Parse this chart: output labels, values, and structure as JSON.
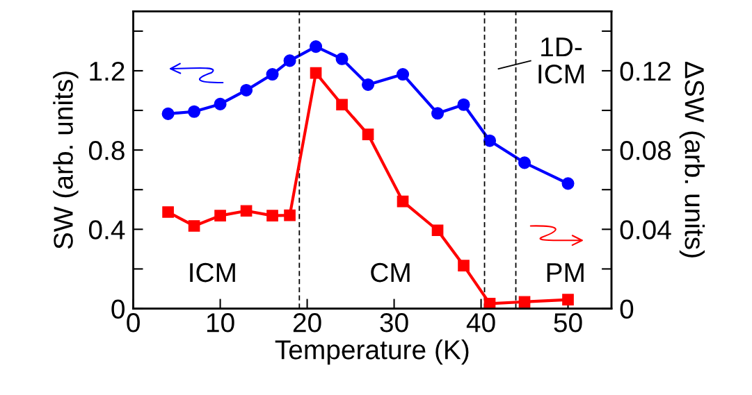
{
  "chart_data": {
    "type": "line",
    "xlabel": "Temperature (K)",
    "ylabel": "SW (arb. units)",
    "y2label": "ΔSW (arb. units)",
    "x": [
      4,
      7,
      10,
      13,
      16,
      18,
      21,
      24,
      27,
      31,
      35,
      38,
      41,
      45,
      50
    ],
    "series": [
      {
        "color": "#0000ff",
        "marker": "circle",
        "values": [
          0.983,
          0.994,
          1.032,
          1.102,
          1.182,
          1.251,
          1.322,
          1.26,
          1.13,
          1.182,
          0.985,
          1.029,
          0.847,
          0.736,
          0.631
        ]
      },
      {
        "color": "#ff0000",
        "marker": "square",
        "axis": "y2",
        "values": [
          0.0487,
          0.0417,
          0.0469,
          0.0493,
          0.0469,
          0.0471,
          0.1189,
          0.1029,
          0.0879,
          0.0541,
          0.0395,
          0.0217,
          0.0025,
          0.0034,
          0.0045
        ]
      }
    ],
    "xlim": [
      0,
      55
    ],
    "xticks": [
      0,
      10,
      20,
      30,
      40,
      50
    ],
    "ylim": [
      0,
      1.5
    ],
    "yticks": [
      0,
      0.4,
      0.8,
      1.2
    ],
    "y2lim": [
      0,
      0.15
    ],
    "y2ticks": [
      0,
      0.04,
      0.08,
      0.12
    ],
    "ref_lines": [
      {
        "axis": "x",
        "value": 19.1,
        "color": "#000000",
        "line_style": "dashed"
      },
      {
        "axis": "x",
        "value": 40.4,
        "color": "#000000",
        "line_style": "dashed"
      },
      {
        "axis": "x",
        "value": 44.0,
        "color": "#000000",
        "line_style": "dashed"
      }
    ],
    "annotations": [
      "ICM",
      "CM",
      "1D-\nICM",
      "PM"
    ],
    "grid": false,
    "legend": false,
    "line_style": "solid"
  }
}
